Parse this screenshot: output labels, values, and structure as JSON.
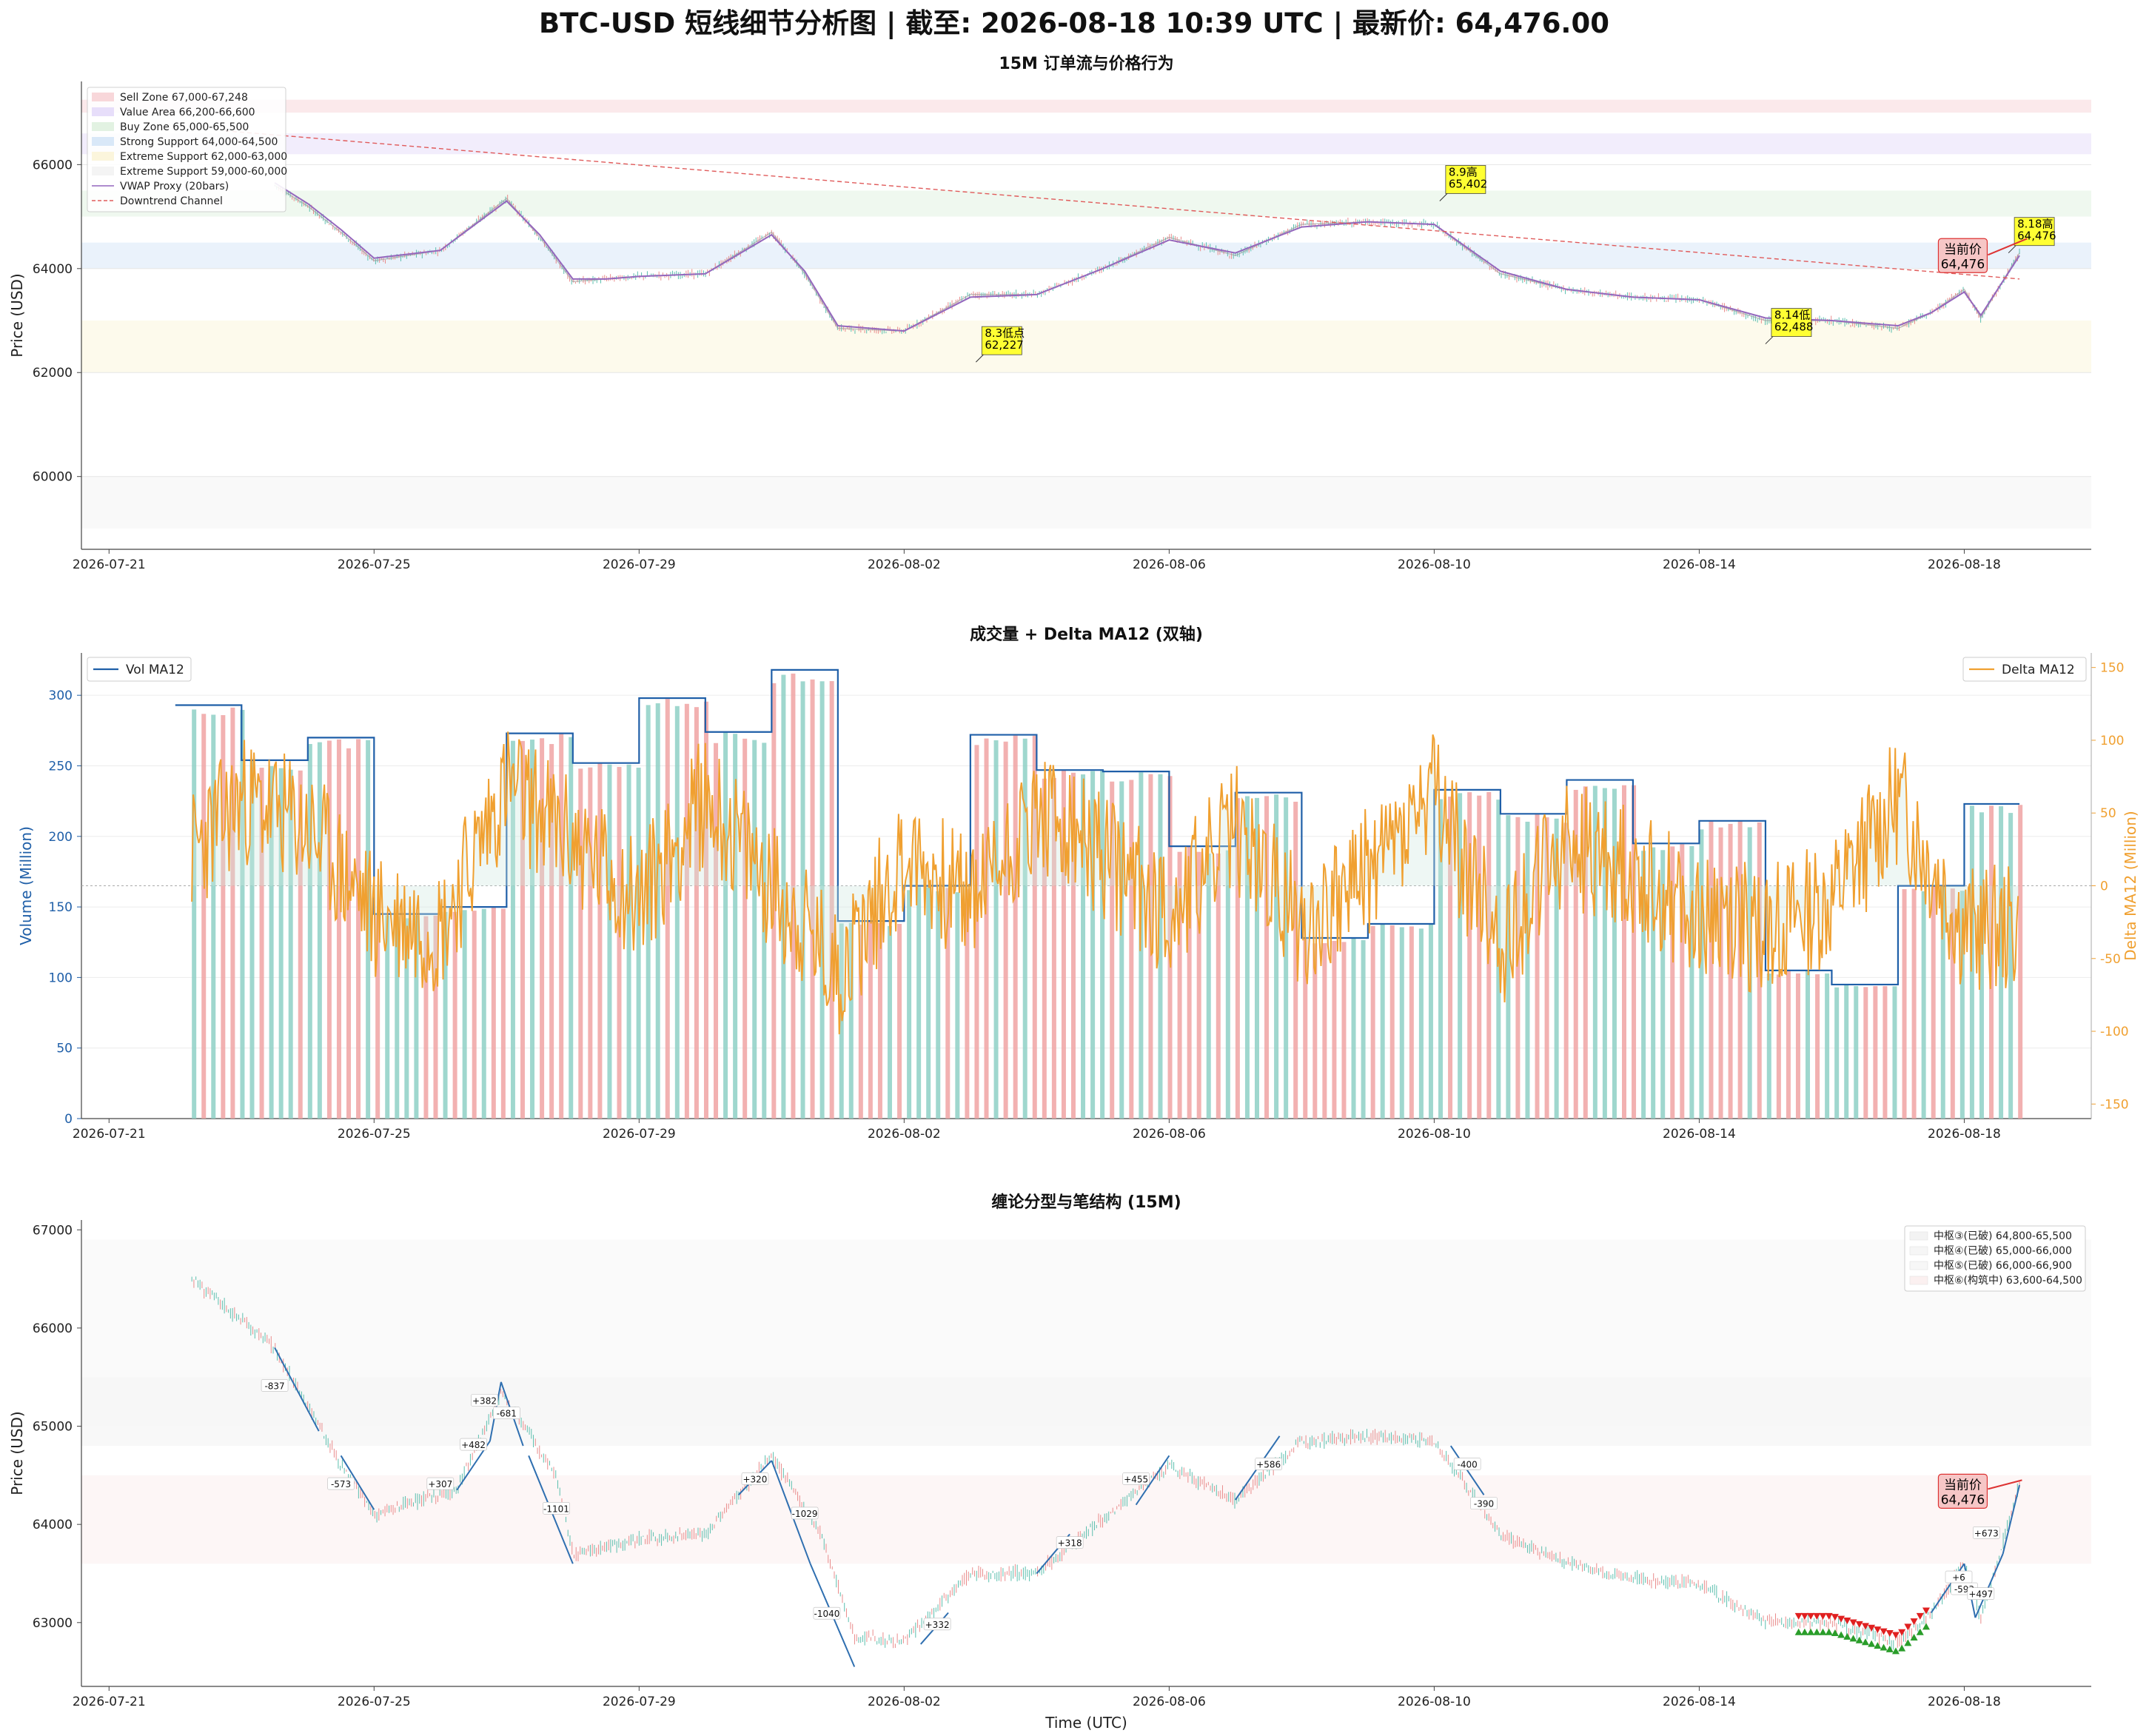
{
  "title": "BTC-USD 短线细节分析图 | 截至: 2026-08-18 10:39 UTC | 最新价: 64,476.00",
  "x_ticks": [
    "2026-07-21",
    "2026-07-25",
    "2026-07-29",
    "2026-08-02",
    "2026-08-06",
    "2026-08-10",
    "2026-08-14",
    "2026-08-18"
  ],
  "xlabel": "Time (UTC)",
  "chart_data": [
    {
      "type": "line",
      "title": "15M 订单流与价格行为",
      "ylabel": "Price (USD)",
      "xlim": [
        "2026-07-20T14:00",
        "2026-08-19T22:00"
      ],
      "ylim": [
        58600,
        67600
      ],
      "yticks": [
        60000,
        62000,
        64000,
        66000
      ],
      "series": [
        {
          "name": "Price",
          "color": "#9a9a9a",
          "x": [
            "2026-07-23T12:00",
            "2026-07-24T00:00",
            "2026-07-24T12:00",
            "2026-07-25T00:00",
            "2026-07-26T00:00",
            "2026-07-27T00:00",
            "2026-07-27T12:00",
            "2026-07-28T00:00",
            "2026-07-28T12:00",
            "2026-07-29T00:00",
            "2026-07-30T00:00",
            "2026-07-31T00:00",
            "2026-07-31T12:00",
            "2026-08-01T00:00",
            "2026-08-02T00:00",
            "2026-08-03T00:00",
            "2026-08-04T00:00",
            "2026-08-05T00:00",
            "2026-08-06T00:00",
            "2026-08-07T00:00",
            "2026-08-08T00:00",
            "2026-08-09T00:00",
            "2026-08-10T00:00",
            "2026-08-11T00:00",
            "2026-08-12T00:00",
            "2026-08-13T00:00",
            "2026-08-14T00:00",
            "2026-08-15T00:00",
            "2026-08-16T00:00",
            "2026-08-17T00:00",
            "2026-08-17T12:00",
            "2026-08-18T00:00",
            "2026-08-18T06:00",
            "2026-08-18T20:00"
          ],
          "y": [
            65600,
            65200,
            64700,
            64150,
            64350,
            65350,
            64600,
            63750,
            63800,
            63850,
            63900,
            64700,
            63900,
            62850,
            62800,
            63500,
            63500,
            64000,
            64600,
            64250,
            64850,
            64900,
            64850,
            63900,
            63600,
            63450,
            63400,
            63000,
            63000,
            62850,
            63150,
            63600,
            63050,
            64300
          ]
        },
        {
          "name": "VWAP Proxy (20bars)",
          "color": "#9467bd",
          "x": [
            "2026-07-23T12:00",
            "2026-07-24T00:00",
            "2026-07-24T12:00",
            "2026-07-25T00:00",
            "2026-07-26T00:00",
            "2026-07-27T00:00",
            "2026-07-27T12:00",
            "2026-07-28T00:00",
            "2026-07-28T12:00",
            "2026-07-29T00:00",
            "2026-07-30T00:00",
            "2026-07-31T00:00",
            "2026-07-31T12:00",
            "2026-08-01T00:00",
            "2026-08-02T00:00",
            "2026-08-03T00:00",
            "2026-08-04T00:00",
            "2026-08-05T00:00",
            "2026-08-06T00:00",
            "2026-08-07T00:00",
            "2026-08-08T00:00",
            "2026-08-09T00:00",
            "2026-08-10T00:00",
            "2026-08-11T00:00",
            "2026-08-12T00:00",
            "2026-08-13T00:00",
            "2026-08-14T00:00",
            "2026-08-15T00:00",
            "2026-08-16T00:00",
            "2026-08-17T00:00",
            "2026-08-17T12:00",
            "2026-08-18T00:00",
            "2026-08-18T06:00",
            "2026-08-18T20:00"
          ],
          "y": [
            65650,
            65250,
            64750,
            64200,
            64350,
            65300,
            64650,
            63800,
            63800,
            63850,
            63900,
            64650,
            63950,
            62900,
            62800,
            63450,
            63500,
            64000,
            64550,
            64300,
            64800,
            64900,
            64850,
            63950,
            63600,
            63450,
            63400,
            63050,
            63000,
            62900,
            63150,
            63550,
            63100,
            64250
          ]
        },
        {
          "name": "Downtrend Channel",
          "color": "#e05b5b",
          "dashed": true,
          "x": [
            "2026-07-22T18:00",
            "2026-08-18T20:00"
          ],
          "y": [
            66650,
            63800
          ]
        }
      ],
      "legend_loc": "upper-left",
      "legend": [
        "Sell Zone 67,000-67,248",
        "Value Area 66,200-66,600",
        "Buy Zone 65,000-65,500",
        "Strong Support 64,000-64,500",
        "Extreme Support 62,000-63,000",
        "Extreme Support 59,000-60,000",
        "VWAP Proxy (20bars)",
        "Downtrend Channel"
      ],
      "zones": [
        {
          "from": 67000,
          "to": 67248,
          "color": "#f8d7da"
        },
        {
          "from": 66200,
          "to": 66600,
          "color": "#e7defa"
        },
        {
          "from": 65000,
          "to": 65500,
          "color": "#e2f2e2"
        },
        {
          "from": 64000,
          "to": 64500,
          "color": "#d9e8f8"
        },
        {
          "from": 62000,
          "to": 63000,
          "color": "#fbf5dc"
        },
        {
          "from": 59000,
          "to": 60000,
          "color": "#f4f4f4"
        }
      ],
      "annotations": [
        {
          "text": "8.3低点\n62,227",
          "x": "2026-08-03T02:00",
          "y": 62400
        },
        {
          "text": "8.9高\n65,402",
          "x": "2026-08-10T02:00",
          "y": 65500
        },
        {
          "text": "8.14低\n62,488",
          "x": "2026-08-15T00:00",
          "y": 62750
        },
        {
          "text": "8.18高\n64,476",
          "x": "2026-08-18T16:00",
          "y": 64500
        },
        {
          "text": "当前价\n64,476",
          "x": "2026-08-18T00:00",
          "y": 64150,
          "current": true
        }
      ]
    },
    {
      "type": "bar",
      "title": "成交量 + Delta MA12 (双轴)",
      "ylabel": "Volume (Million)",
      "ylabel_right": "Delta MA12 (Million)",
      "ylim": [
        0,
        330
      ],
      "yticks": [
        0,
        50,
        100,
        150,
        200,
        250,
        300
      ],
      "ylim_right": [
        -160,
        160
      ],
      "yticks_right": [
        -150,
        -100,
        -50,
        0,
        50,
        100,
        150
      ],
      "vol_ma12": {
        "name": "Vol MA12",
        "color": "#1f5fa8",
        "x": [
          "2026-07-22T00:00",
          "2026-07-23T00:00",
          "2026-07-24T00:00",
          "2026-07-25T00:00",
          "2026-07-26T00:00",
          "2026-07-27T00:00",
          "2026-07-28T00:00",
          "2026-07-29T00:00",
          "2026-07-30T00:00",
          "2026-07-31T00:00",
          "2026-08-01T00:00",
          "2026-08-02T00:00",
          "2026-08-03T00:00",
          "2026-08-04T00:00",
          "2026-08-05T00:00",
          "2026-08-06T00:00",
          "2026-08-07T00:00",
          "2026-08-08T00:00",
          "2026-08-09T00:00",
          "2026-08-10T00:00",
          "2026-08-11T00:00",
          "2026-08-12T00:00",
          "2026-08-13T00:00",
          "2026-08-14T00:00",
          "2026-08-15T00:00",
          "2026-08-16T00:00",
          "2026-08-17T00:00",
          "2026-08-18T00:00"
        ],
        "y": [
          293,
          254,
          270,
          145,
          150,
          273,
          252,
          298,
          274,
          318,
          140,
          165,
          272,
          247,
          246,
          193,
          231,
          128,
          138,
          233,
          216,
          240,
          195,
          211,
          105,
          95,
          165,
          223
        ]
      },
      "delta_ma12": {
        "name": "Delta MA12",
        "color": "#f0a030",
        "x": [
          "2026-07-22T00:00",
          "2026-07-23T00:00",
          "2026-07-24T00:00",
          "2026-07-25T00:00",
          "2026-07-26T00:00",
          "2026-07-27T00:00",
          "2026-07-28T00:00",
          "2026-07-29T00:00",
          "2026-07-30T00:00",
          "2026-07-31T00:00",
          "2026-08-01T00:00",
          "2026-08-02T00:00",
          "2026-08-03T00:00",
          "2026-08-04T00:00",
          "2026-08-05T00:00",
          "2026-08-06T00:00",
          "2026-08-07T00:00",
          "2026-08-08T00:00",
          "2026-08-09T00:00",
          "2026-08-10T00:00",
          "2026-08-11T00:00",
          "2026-08-12T00:00",
          "2026-08-13T00:00",
          "2026-08-14T00:00",
          "2026-08-15T00:00",
          "2026-08-16T00:00",
          "2026-08-17T00:00",
          "2026-08-18T00:00"
        ],
        "y": [
          10,
          60,
          40,
          -20,
          -30,
          70,
          30,
          -10,
          60,
          0,
          -60,
          20,
          -10,
          50,
          20,
          -20,
          40,
          -30,
          10,
          60,
          -40,
          30,
          10,
          -20,
          -30,
          -10,
          60,
          -30
        ]
      },
      "legend": [
        "Vol MA12",
        "Delta MA12"
      ]
    },
    {
      "type": "line",
      "title": "缠论分型与笔结构 (15M)",
      "ylabel": "Price (USD)",
      "xlabel": "Time (UTC)",
      "ylim": [
        62350,
        67100
      ],
      "yticks": [
        63000,
        64000,
        65000,
        66000,
        67000
      ],
      "price": {
        "x": [
          "2026-07-22T06:00",
          "2026-07-23T12:00",
          "2026-07-24T00:00",
          "2026-07-24T12:00",
          "2026-07-25T00:00",
          "2026-07-26T06:00",
          "2026-07-26T22:00",
          "2026-07-27T18:00",
          "2026-07-28T00:00",
          "2026-07-29T00:00",
          "2026-07-30T00:00",
          "2026-07-31T00:00",
          "2026-07-31T18:00",
          "2026-08-01T06:00",
          "2026-08-02T00:00",
          "2026-08-03T00:00",
          "2026-08-04T00:00",
          "2026-08-05T00:00",
          "2026-08-06T00:00",
          "2026-08-07T00:00",
          "2026-08-08T00:00",
          "2026-08-09T00:00",
          "2026-08-10T00:00",
          "2026-08-11T00:00",
          "2026-08-12T00:00",
          "2026-08-13T00:00",
          "2026-08-14T00:00",
          "2026-08-15T00:00",
          "2026-08-16T00:00",
          "2026-08-17T00:00",
          "2026-08-17T12:00",
          "2026-08-18T00:00",
          "2026-08-18T06:00",
          "2026-08-18T20:00"
        ],
        "y": [
          66500,
          65800,
          65200,
          64600,
          64100,
          64350,
          65350,
          64500,
          63700,
          63850,
          63900,
          64700,
          63900,
          62850,
          62800,
          63500,
          63500,
          64050,
          64600,
          64250,
          64850,
          64900,
          64850,
          63900,
          63600,
          63450,
          63400,
          63000,
          63000,
          62800,
          63100,
          63600,
          63050,
          64400
        ]
      },
      "strokes": [
        {
          "label": "-837",
          "x": "2026-07-23T12:00",
          "y": 65400
        },
        {
          "label": "-573",
          "x": "2026-07-24T12:00",
          "y": 64400
        },
        {
          "label": "+307",
          "x": "2026-07-26T00:00",
          "y": 64400
        },
        {
          "label": "+482",
          "x": "2026-07-26T12:00",
          "y": 64800
        },
        {
          "label": "+382",
          "x": "2026-07-26T16:00",
          "y": 65250
        },
        {
          "label": "-681",
          "x": "2026-07-27T00:00",
          "y": 65120
        },
        {
          "label": "-1101",
          "x": "2026-07-27T18:00",
          "y": 64150
        },
        {
          "label": "+320",
          "x": "2026-07-30T18:00",
          "y": 64450
        },
        {
          "label": "-1029",
          "x": "2026-07-31T12:00",
          "y": 64100
        },
        {
          "label": "-1040",
          "x": "2026-07-31T20:00",
          "y": 63080
        },
        {
          "label": "+332",
          "x": "2026-08-02T12:00",
          "y": 62970
        },
        {
          "label": "+318",
          "x": "2026-08-04T12:00",
          "y": 63800
        },
        {
          "label": "+455",
          "x": "2026-08-05T12:00",
          "y": 64450
        },
        {
          "label": "+586",
          "x": "2026-08-07T12:00",
          "y": 64600
        },
        {
          "label": "-400",
          "x": "2026-08-10T12:00",
          "y": 64600
        },
        {
          "label": "-390",
          "x": "2026-08-10T18:00",
          "y": 64200
        },
        {
          "label": "+673",
          "x": "2026-08-18T08:00",
          "y": 63900
        },
        {
          "label": "+6",
          "x": "2026-08-17T22:00",
          "y": 63450
        },
        {
          "label": "-593",
          "x": "2026-08-18T00:00",
          "y": 63330
        },
        {
          "label": "+497",
          "x": "2026-08-18T06:00",
          "y": 63280
        }
      ],
      "legend": [
        "中枢③(已破) 64,800-65,500",
        "中枢④(已破) 65,000-66,000",
        "中枢⑤(已破) 66,000-66,900",
        "中枢⑥(构筑中) 63,600-64,500"
      ],
      "legend_loc": "upper-right",
      "zones": [
        {
          "from": 64800,
          "to": 65500,
          "color": "#f3f3f3"
        },
        {
          "from": 65000,
          "to": 66000,
          "color": "#f6f6f6"
        },
        {
          "from": 66000,
          "to": 66900,
          "color": "#f7f7f7"
        },
        {
          "from": 63600,
          "to": 64500,
          "color": "#fbf0f0"
        }
      ],
      "current": {
        "text": "当前价\n64,476",
        "x": "2026-08-18T00:00",
        "y": 64300
      }
    }
  ]
}
